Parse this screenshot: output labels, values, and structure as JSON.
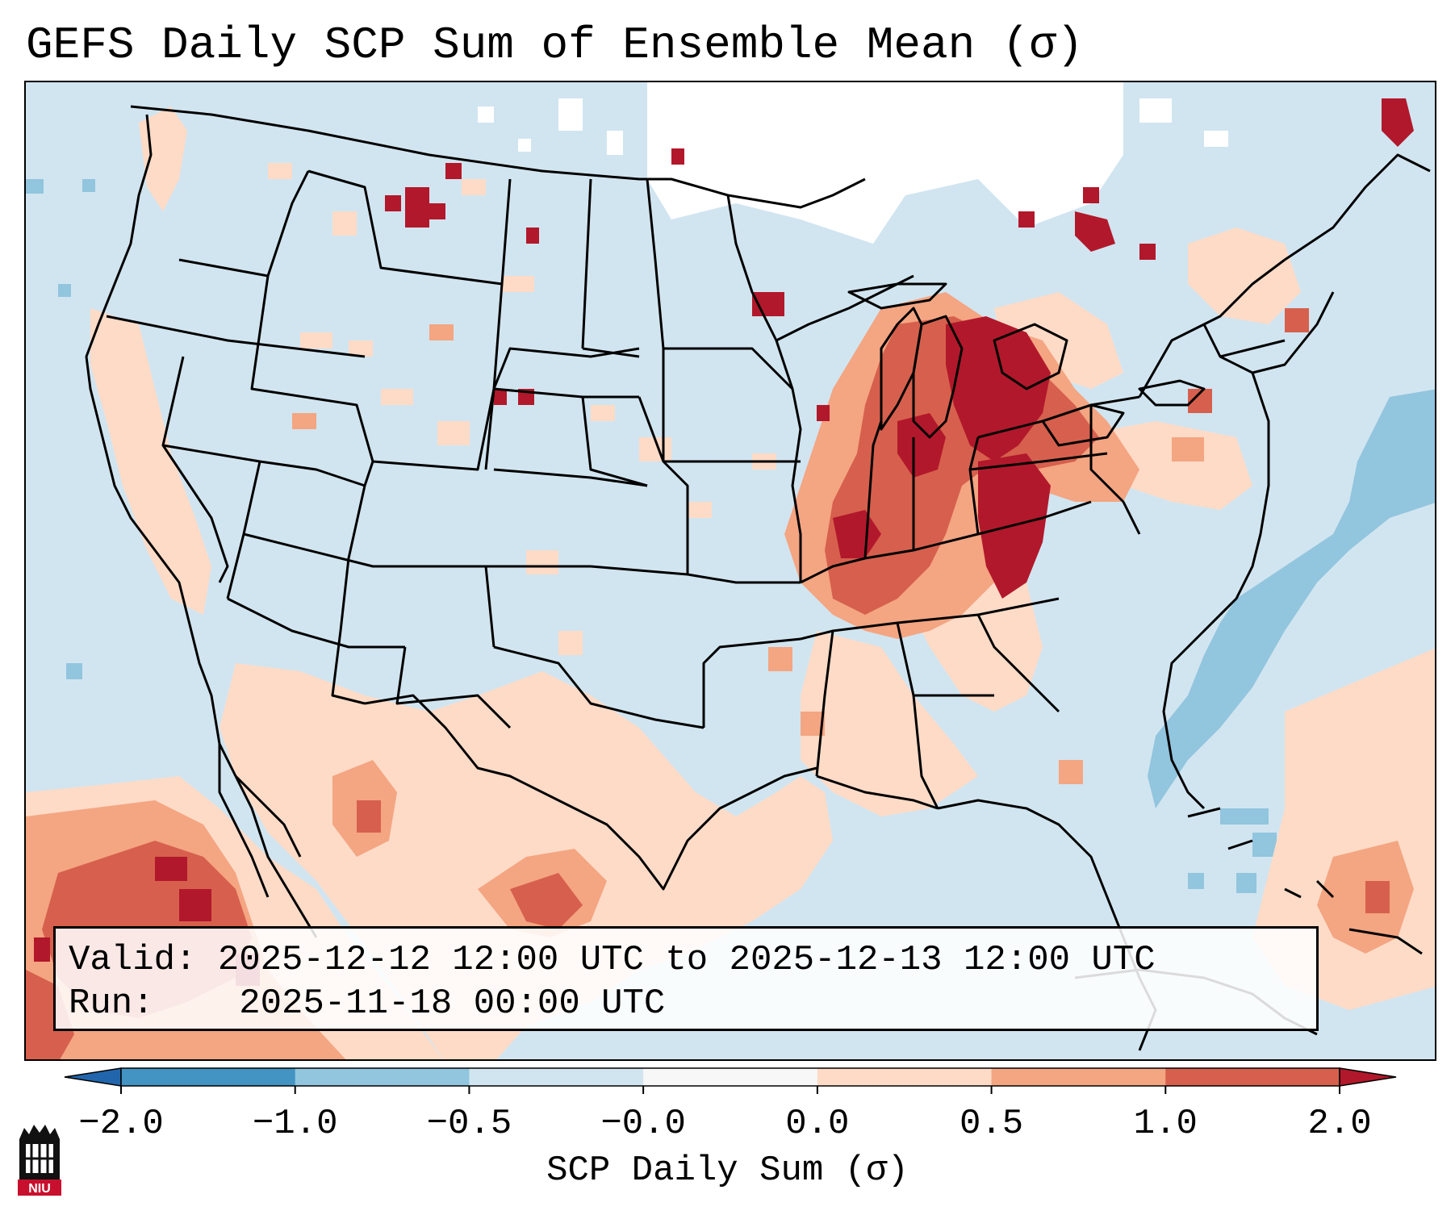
{
  "title": "GEFS Daily SCP Sum of Ensemble Mean (σ)",
  "info": {
    "valid_label": "Valid:",
    "valid_value": "2025-12-12 12:00 UTC to 2025-12-13 12:00 UTC",
    "run_label": "Run:",
    "run_value": "2025-11-18 00:00 UTC"
  },
  "colorbar": {
    "label": "SCP Daily Sum (σ)",
    "ticks": [
      "−2.0",
      "−1.0",
      "−0.5",
      "−0.0",
      "0.0",
      "0.5",
      "1.0",
      "2.0"
    ],
    "bins": [
      {
        "range": "< -2.0",
        "color": "#2166ac"
      },
      {
        "range": "-2.0 to -1.0",
        "color": "#4393c3"
      },
      {
        "range": "-1.0 to -0.5",
        "color": "#92c5de"
      },
      {
        "range": "-0.5 to -0.0",
        "color": "#d1e5f0"
      },
      {
        "range": "-0.0 to 0.0",
        "color": "#f7f7f7"
      },
      {
        "range": "0.0 to 0.5",
        "color": "#fddbc7"
      },
      {
        "range": "0.5 to 1.0",
        "color": "#f4a582"
      },
      {
        "range": "1.0 to 2.0",
        "color": "#d6604d"
      },
      {
        "range": "> 2.0",
        "color": "#b2182b"
      }
    ]
  },
  "colors": {
    "base": "#d1e5f0",
    "light_positive": "#fddbc7",
    "moderate_positive": "#f4a582",
    "high_positive": "#d6604d",
    "max_positive": "#b2182b",
    "negative": "#92c5de",
    "neutral": "#ffffff"
  },
  "logo": {
    "text": "NIU",
    "icon": "niu-logo-icon"
  }
}
